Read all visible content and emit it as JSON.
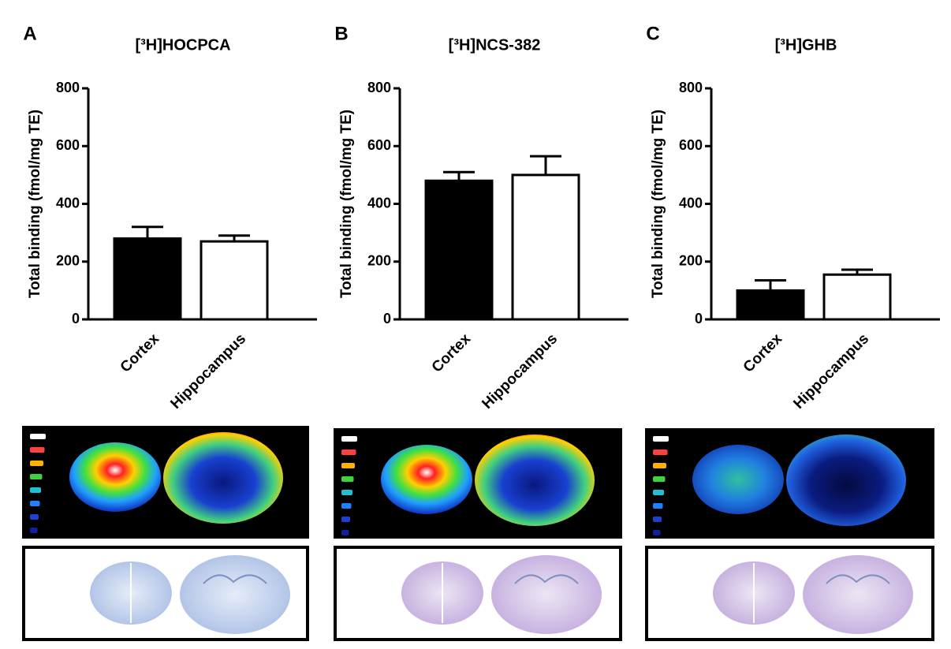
{
  "chart_data": [
    {
      "type": "bar",
      "panel": "A",
      "title": "[³H]HOCPCA",
      "ylabel": "Total binding (fmol/mg TE)",
      "categories": [
        "Cortex",
        "Hippocampus"
      ],
      "values": [
        280,
        270
      ],
      "errors": [
        40,
        20
      ],
      "colors": [
        "#000000",
        "#ffffff"
      ],
      "ylim": [
        0,
        800
      ],
      "yticks": [
        0,
        200,
        400,
        600,
        800
      ]
    },
    {
      "type": "bar",
      "panel": "B",
      "title": "[³H]NCS-382",
      "ylabel": "Total binding (fmol/mg TE)",
      "categories": [
        "Cortex",
        "Hippocampus"
      ],
      "values": [
        480,
        500
      ],
      "errors": [
        30,
        65
      ],
      "colors": [
        "#000000",
        "#ffffff"
      ],
      "ylim": [
        0,
        800
      ],
      "yticks": [
        0,
        200,
        400,
        600,
        800
      ]
    },
    {
      "type": "bar",
      "panel": "C",
      "title": "[³H]GHB",
      "ylabel": "Total binding (fmol/mg TE)",
      "categories": [
        "Cortex",
        "Hippocampus"
      ],
      "values": [
        100,
        155
      ],
      "errors": [
        35,
        17
      ],
      "colors": [
        "#000000",
        "#ffffff"
      ],
      "ylim": [
        0,
        800
      ],
      "yticks": [
        0,
        200,
        400,
        600,
        800
      ]
    }
  ]
}
